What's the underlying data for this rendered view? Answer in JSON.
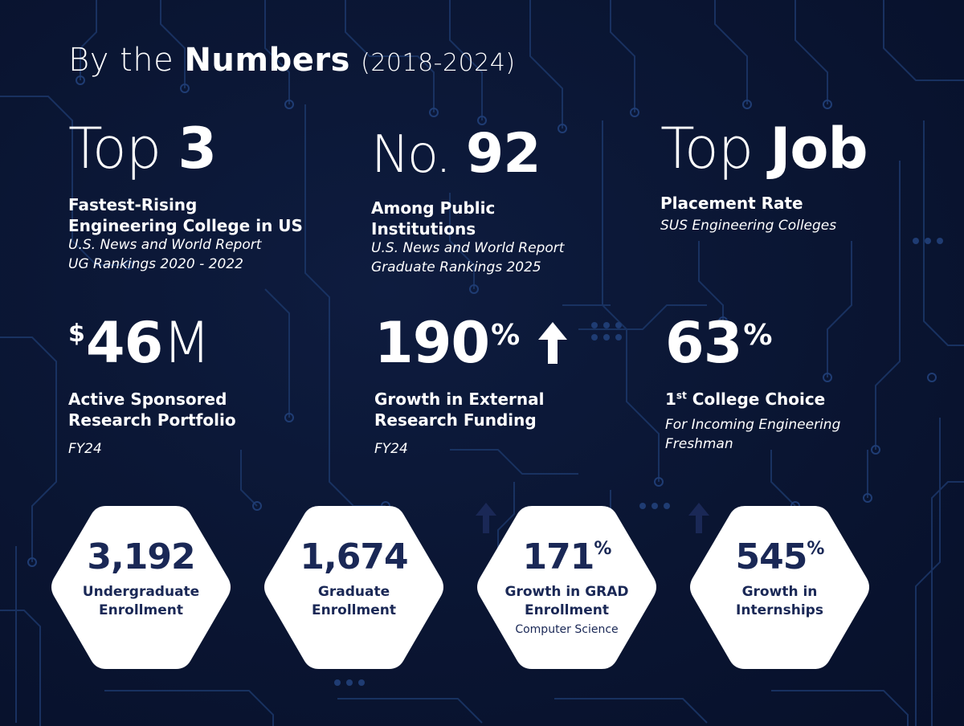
{
  "colors": {
    "background": "#0a1532",
    "circuit": "#1b3566",
    "hexagon_fill": "#ffffff",
    "hexagon_text": "#1a2856"
  },
  "header": {
    "lead": "By the",
    "bold": "Numbers",
    "years": "(2018-2024)"
  },
  "stats_row1": [
    {
      "big_light": "Top",
      "big_bold": "3",
      "label_line1": "Fastest-Rising",
      "label_line2": "Engineering College in US",
      "source_line1": "U.S. News and World Report",
      "source_line2": "UG Rankings 2020 - 2022"
    },
    {
      "big_light": "No.",
      "big_bold": "92",
      "label_line1": "Among Public",
      "label_line2": "Institutions",
      "source_line1": "U.S. News and World Report",
      "source_line2": "Graduate Rankings 2025"
    },
    {
      "big_light": "Top",
      "big_bold": "Job",
      "label_line1": "Placement Rate",
      "source_line1": "SUS Engineering Colleges"
    }
  ],
  "stats_row2": [
    {
      "prefix": "$",
      "value": "46",
      "suffix": "M",
      "label_line1": "Active Sponsored",
      "label_line2": "Research Portfolio",
      "source": "FY24"
    },
    {
      "value": "190",
      "suffix": "%",
      "arrow_icon": "up-arrow-icon",
      "label_line1": "Growth in External",
      "label_line2": "Research Funding",
      "source": "FY24"
    },
    {
      "value": "63",
      "suffix": "%",
      "label_ordinal": "1",
      "label_ordinal_sup": "st",
      "label_rest": "College Choice",
      "source_line1": "For Incoming Engineering",
      "source_line2": "Freshman"
    }
  ],
  "hexagons": [
    {
      "value": "3,192",
      "label_line1": "Undergraduate",
      "label_line2": "Enrollment"
    },
    {
      "value": "1,674",
      "label_line1": "Graduate",
      "label_line2": "Enrollment"
    },
    {
      "value": "171",
      "suffix": "%",
      "arrow_icon": "up-arrow-icon",
      "label_line1": "Growth in GRAD",
      "label_line2": "Enrollment",
      "sub": "Computer Science"
    },
    {
      "value": "545",
      "suffix": "%",
      "arrow_icon": "up-arrow-icon",
      "label_line1": "Growth in",
      "label_line2": "Internships"
    }
  ]
}
